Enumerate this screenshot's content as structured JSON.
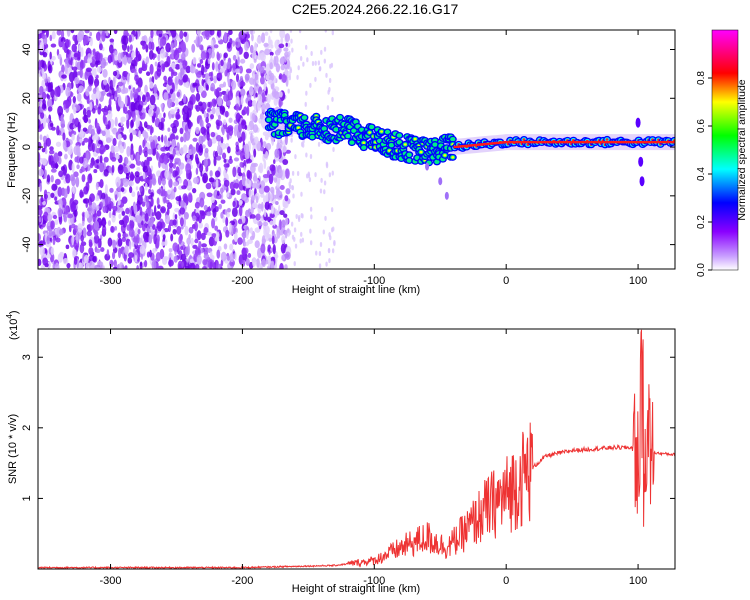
{
  "title": "C2E5.2024.266.22.16.G17",
  "chart_data": [
    {
      "type": "heatmap",
      "xlabel": "Height of straight line (km)",
      "ylabel": "Frequency (Hz)",
      "xlim": [
        -355,
        128
      ],
      "ylim": [
        -50,
        48
      ],
      "xticks": [
        -300,
        -200,
        -100,
        0,
        100
      ],
      "xtick_labels": [
        "-300",
        "-200",
        "-100",
        "0",
        "100"
      ],
      "yticks": [
        -40,
        -20,
        0,
        20,
        40
      ],
      "ytick_labels": [
        "-40",
        "-20",
        "0",
        "20",
        "40"
      ],
      "colorbar": {
        "label": "Normalized spectral amplitude",
        "range": [
          0,
          1
        ],
        "ticks": [
          0.0,
          0.2,
          0.4,
          0.6,
          0.8
        ],
        "tick_labels": [
          "0.0",
          "0.2",
          "0.4",
          "0.6",
          "0.8"
        ],
        "colors": [
          "#ffffff",
          "#8a00ff",
          "#0000ff",
          "#00ffff",
          "#00ff00",
          "#ffff00",
          "#ff0000",
          "#ff00ff"
        ]
      },
      "features": {
        "noise_region_x": [
          -355,
          -165
        ],
        "signal_track": [
          {
            "x": -180,
            "y": 10
          },
          {
            "x": -150,
            "y": 8
          },
          {
            "x": -120,
            "y": 7
          },
          {
            "x": -100,
            "y": 3
          },
          {
            "x": -80,
            "y": 0
          },
          {
            "x": -60,
            "y": -2
          },
          {
            "x": -40,
            "y": 0
          },
          {
            "x": -20,
            "y": 1
          },
          {
            "x": 0,
            "y": 2
          },
          {
            "x": 50,
            "y": 2
          },
          {
            "x": 100,
            "y": 2
          },
          {
            "x": 128,
            "y": 2
          }
        ]
      }
    },
    {
      "type": "line",
      "xlabel": "Height of straight line (km)",
      "ylabel": "SNR (10 * v/v)",
      "scale_label": "(x10",
      "scale_exponent": "4",
      "scale_suffix": ")",
      "xlim": [
        -355,
        128
      ],
      "ylim": [
        0,
        3.4
      ],
      "xticks": [
        -300,
        -200,
        -100,
        0,
        100
      ],
      "xtick_labels": [
        "-300",
        "-200",
        "-100",
        "0",
        "100"
      ],
      "yticks": [
        1,
        2,
        3
      ],
      "ytick_labels": [
        "1",
        "2",
        "3"
      ],
      "color": "#ee3333",
      "envelope": [
        {
          "x": -355,
          "y": 0.02
        },
        {
          "x": -200,
          "y": 0.02
        },
        {
          "x": -130,
          "y": 0.05
        },
        {
          "x": -100,
          "y": 0.12
        },
        {
          "x": -80,
          "y": 0.3
        },
        {
          "x": -60,
          "y": 0.45
        },
        {
          "x": -45,
          "y": 0.3
        },
        {
          "x": -30,
          "y": 0.55
        },
        {
          "x": -15,
          "y": 0.85
        },
        {
          "x": 0,
          "y": 1.05
        },
        {
          "x": 15,
          "y": 1.35
        },
        {
          "x": 30,
          "y": 1.6
        },
        {
          "x": 50,
          "y": 1.68
        },
        {
          "x": 80,
          "y": 1.72
        },
        {
          "x": 95,
          "y": 1.72
        },
        {
          "x": 100,
          "y": 1.6
        },
        {
          "x": 103,
          "y": 0.4
        },
        {
          "x": 106,
          "y": 2.0
        },
        {
          "x": 110,
          "y": 1.65
        },
        {
          "x": 128,
          "y": 1.62
        }
      ]
    }
  ]
}
